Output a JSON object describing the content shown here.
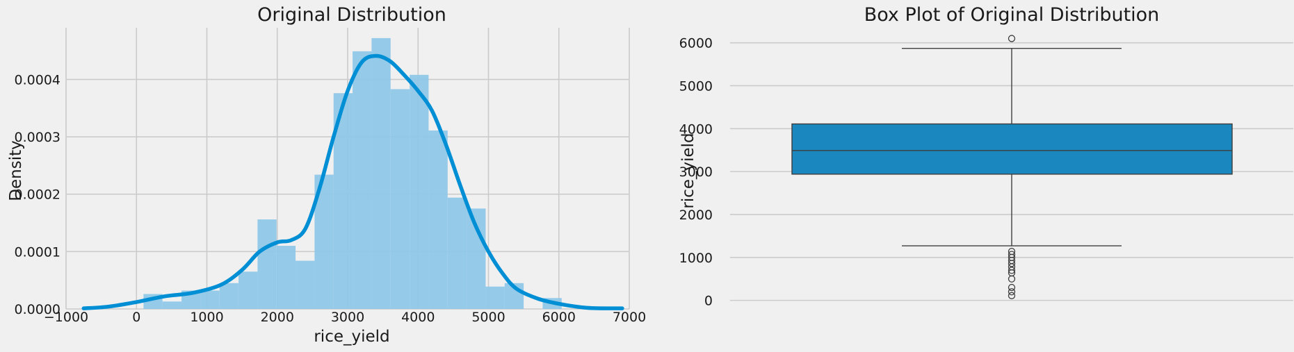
{
  "chart_data": [
    {
      "type": "histogram",
      "title": "Original Distribution",
      "xlabel": "rice_yield",
      "ylabel": "Density",
      "xlim": [
        -1000,
        7000
      ],
      "ylim": [
        0,
        0.00049
      ],
      "x_ticks": [
        -1000,
        0,
        1000,
        2000,
        3000,
        4000,
        5000,
        6000,
        7000
      ],
      "x_tick_labels": [
        "−1000",
        "0",
        "1000",
        "2000",
        "3000",
        "4000",
        "5000",
        "6000",
        "7000"
      ],
      "y_ticks": [
        0,
        0.0001,
        0.0002,
        0.0003,
        0.0004
      ],
      "y_tick_labels": [
        "0.0000",
        "0.0001",
        "0.0002",
        "0.0003",
        "0.0004"
      ],
      "grid": true,
      "bar_color": "#8fc7e8",
      "kde_color": "#008fd5",
      "bins": [
        {
          "x0": 100,
          "x1": 370,
          "value": 2.6e-05
        },
        {
          "x0": 370,
          "x1": 640,
          "value": 1.3e-05
        },
        {
          "x0": 640,
          "x1": 910,
          "value": 3.2e-05
        },
        {
          "x0": 910,
          "x1": 1180,
          "value": 3.2e-05
        },
        {
          "x0": 1180,
          "x1": 1450,
          "value": 4.5e-05
        },
        {
          "x0": 1450,
          "x1": 1720,
          "value": 6.5e-05
        },
        {
          "x0": 1720,
          "x1": 1990,
          "value": 0.000156
        },
        {
          "x0": 1990,
          "x1": 2260,
          "value": 0.00011
        },
        {
          "x0": 2260,
          "x1": 2530,
          "value": 8.4e-05
        },
        {
          "x0": 2530,
          "x1": 2800,
          "value": 0.000234
        },
        {
          "x0": 2800,
          "x1": 3070,
          "value": 0.000376
        },
        {
          "x0": 3070,
          "x1": 3340,
          "value": 0.000449
        },
        {
          "x0": 3340,
          "x1": 3610,
          "value": 0.000472
        },
        {
          "x0": 3610,
          "x1": 3880,
          "value": 0.000383
        },
        {
          "x0": 3880,
          "x1": 4150,
          "value": 0.000408
        },
        {
          "x0": 4150,
          "x1": 4420,
          "value": 0.000311
        },
        {
          "x0": 4420,
          "x1": 4690,
          "value": 0.000194
        },
        {
          "x0": 4690,
          "x1": 4960,
          "value": 0.000175
        },
        {
          "x0": 4960,
          "x1": 5230,
          "value": 3.9e-05
        },
        {
          "x0": 5230,
          "x1": 5500,
          "value": 4.5e-05
        },
        {
          "x0": 5500,
          "x1": 5770,
          "value": 0
        },
        {
          "x0": 5770,
          "x1": 6040,
          "value": 1.9e-05
        }
      ],
      "kde": {
        "x": [
          -750,
          -400,
          0,
          400,
          800,
          1200,
          1500,
          1750,
          2000,
          2200,
          2400,
          2600,
          2800,
          3000,
          3200,
          3400,
          3600,
          3800,
          4000,
          4200,
          4400,
          4600,
          4800,
          5000,
          5200,
          5400,
          5700,
          6000,
          6400,
          6900
        ],
        "y": [
          1e-06,
          4e-06,
          1.2e-05,
          2.2e-05,
          2.8e-05,
          4.2e-05,
          6.8e-05,
          0.0001,
          0.000116,
          0.00012,
          0.00014,
          0.00021,
          0.0003,
          0.00038,
          0.00043,
          0.000441,
          0.000432,
          0.000408,
          0.00038,
          0.000345,
          0.000285,
          0.000215,
          0.00015,
          0.0001,
          6.2e-05,
          3.5e-05,
          1.8e-05,
          9e-06,
          2e-06,
          1e-06
        ]
      }
    },
    {
      "type": "box",
      "title": "Box Plot of Original Distribution",
      "ylabel": "rice_yield",
      "xlabel": "",
      "ylim": [
        -200,
        6350
      ],
      "y_ticks": [
        0,
        1000,
        2000,
        3000,
        4000,
        5000,
        6000
      ],
      "y_tick_labels": [
        "0",
        "1000",
        "2000",
        "3000",
        "4000",
        "5000",
        "6000"
      ],
      "grid": true,
      "box_color": "#1a87bf",
      "whisker_low": 1270,
      "q1": 2940,
      "median": 3490,
      "q3": 4110,
      "whisker_high": 5870,
      "outliers": [
        6100,
        1140,
        1070,
        1000,
        930,
        860,
        780,
        700,
        640,
        500,
        300,
        200,
        110
      ]
    }
  ]
}
